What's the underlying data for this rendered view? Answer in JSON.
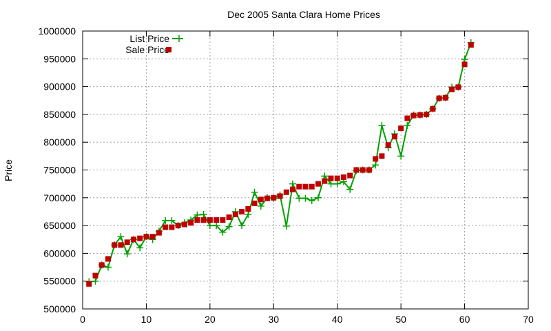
{
  "chart_data": {
    "type": "line",
    "title": "Dec 2005 Santa Clara Home Prices",
    "xlabel": "",
    "ylabel": "Price",
    "xlim": [
      0,
      70
    ],
    "ylim": [
      500000,
      1000000
    ],
    "xticks": [
      0,
      10,
      20,
      30,
      40,
      50,
      60,
      70
    ],
    "yticks": [
      500000,
      550000,
      600000,
      650000,
      700000,
      750000,
      800000,
      850000,
      900000,
      950000,
      1000000
    ],
    "grid": true,
    "legend_position": "top-left",
    "series": [
      {
        "name": "List Price",
        "style": "line-plus",
        "color": "#00a000",
        "x": [
          1,
          2,
          3,
          4,
          5,
          6,
          7,
          8,
          9,
          10,
          11,
          12,
          13,
          14,
          15,
          16,
          17,
          18,
          19,
          20,
          21,
          22,
          23,
          24,
          25,
          26,
          27,
          28,
          29,
          30,
          31,
          32,
          33,
          34,
          35,
          36,
          37,
          38,
          39,
          40,
          41,
          42,
          43,
          44,
          45,
          46,
          47,
          48,
          49,
          50,
          51,
          52,
          53,
          54,
          55,
          56,
          57,
          58,
          59,
          60,
          61
        ],
        "values": [
          549000,
          550000,
          579000,
          575000,
          615000,
          630000,
          599000,
          625000,
          610000,
          630000,
          625000,
          640000,
          659000,
          659000,
          650000,
          655000,
          660000,
          669000,
          670000,
          650000,
          650000,
          638000,
          648000,
          675000,
          650000,
          670000,
          710000,
          685000,
          700000,
          699000,
          705000,
          649000,
          725000,
          699000,
          699000,
          695000,
          700000,
          739000,
          725000,
          725000,
          729000,
          715000,
          749000,
          750000,
          750000,
          759000,
          830000,
          790000,
          815000,
          775000,
          830000,
          849000,
          849000,
          850000,
          860000,
          879000,
          880000,
          899000,
          899000,
          949000,
          979000
        ]
      },
      {
        "name": "Sale Price",
        "style": "square-points",
        "color": "#c00000",
        "x": [
          1,
          2,
          3,
          4,
          5,
          6,
          7,
          8,
          9,
          10,
          11,
          12,
          13,
          14,
          15,
          16,
          17,
          18,
          19,
          20,
          21,
          22,
          23,
          24,
          25,
          26,
          27,
          28,
          29,
          30,
          31,
          32,
          33,
          34,
          35,
          36,
          37,
          38,
          39,
          40,
          41,
          42,
          43,
          44,
          45,
          46,
          47,
          48,
          49,
          50,
          51,
          52,
          53,
          54,
          55,
          56,
          57,
          58,
          59,
          60,
          61
        ],
        "values": [
          545000,
          560000,
          579000,
          590000,
          615000,
          615000,
          620000,
          625000,
          627000,
          630000,
          630000,
          637000,
          647000,
          647000,
          650000,
          652000,
          655000,
          660000,
          660000,
          660000,
          660000,
          660000,
          665000,
          670000,
          675000,
          680000,
          690000,
          697000,
          699000,
          700000,
          703000,
          710000,
          715000,
          720000,
          720000,
          720000,
          725000,
          730000,
          735000,
          735000,
          737000,
          740000,
          750000,
          750000,
          750000,
          770000,
          775000,
          795000,
          810000,
          825000,
          843000,
          848000,
          849000,
          850000,
          860000,
          879000,
          880000,
          895000,
          899000,
          940000,
          975000
        ]
      }
    ]
  }
}
